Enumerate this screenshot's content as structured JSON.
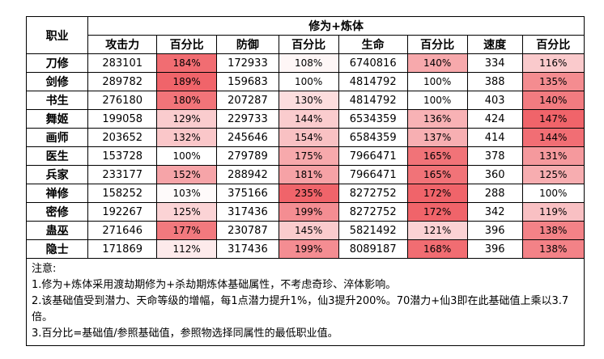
{
  "table": {
    "row_header": "职业",
    "group_header": "修为+炼体",
    "columns": [
      "攻击力",
      "百分比",
      "防御",
      "百分比",
      "生命",
      "百分比",
      "速度",
      "百分比"
    ],
    "rows": [
      {
        "role": "刀修",
        "atk": "283101",
        "atk_pct": "184%",
        "def": "172933",
        "def_pct": "108%",
        "hp": "6740816",
        "hp_pct": "140%",
        "spd": "334",
        "spd_pct": "116%"
      },
      {
        "role": "剑修",
        "atk": "289782",
        "atk_pct": "189%",
        "def": "159683",
        "def_pct": "100%",
        "hp": "4814792",
        "hp_pct": "100%",
        "spd": "388",
        "spd_pct": "135%"
      },
      {
        "role": "书生",
        "atk": "276180",
        "atk_pct": "180%",
        "def": "207287",
        "def_pct": "130%",
        "hp": "4814792",
        "hp_pct": "100%",
        "spd": "403",
        "spd_pct": "140%"
      },
      {
        "role": "舞姬",
        "atk": "199058",
        "atk_pct": "129%",
        "def": "229733",
        "def_pct": "144%",
        "hp": "6534359",
        "hp_pct": "136%",
        "spd": "424",
        "spd_pct": "147%"
      },
      {
        "role": "画师",
        "atk": "203652",
        "atk_pct": "132%",
        "def": "245646",
        "def_pct": "154%",
        "hp": "6584359",
        "hp_pct": "137%",
        "spd": "414",
        "spd_pct": "144%"
      },
      {
        "role": "医生",
        "atk": "153728",
        "atk_pct": "100%",
        "def": "279789",
        "def_pct": "175%",
        "hp": "7966471",
        "hp_pct": "165%",
        "spd": "378",
        "spd_pct": "131%"
      },
      {
        "role": "兵家",
        "atk": "233177",
        "atk_pct": "152%",
        "def": "288942",
        "def_pct": "181%",
        "hp": "7966471",
        "hp_pct": "165%",
        "spd": "360",
        "spd_pct": "125%"
      },
      {
        "role": "禅修",
        "atk": "158252",
        "atk_pct": "103%",
        "def": "375166",
        "def_pct": "235%",
        "hp": "8272752",
        "hp_pct": "172%",
        "spd": "288",
        "spd_pct": "100%"
      },
      {
        "role": "密修",
        "atk": "192267",
        "atk_pct": "125%",
        "def": "317436",
        "def_pct": "199%",
        "hp": "8272752",
        "hp_pct": "172%",
        "spd": "342",
        "spd_pct": "119%"
      },
      {
        "role": "蛊巫",
        "atk": "271646",
        "atk_pct": "177%",
        "def": "230787",
        "def_pct": "145%",
        "hp": "5821492",
        "hp_pct": "121%",
        "spd": "396",
        "spd_pct": "138%"
      },
      {
        "role": "隐士",
        "atk": "171869",
        "atk_pct": "112%",
        "def": "317436",
        "def_pct": "199%",
        "hp": "8089187",
        "hp_pct": "168%",
        "spd": "396",
        "spd_pct": "138%"
      }
    ]
  },
  "notes": [
    "注意:",
    "1.修为+炼体采用渡劫期修为+杀劫期炼体基础属性，不考虑奇珍、淬体影响。",
    "2.该基础值受到潜力、天命等级的增幅，每1点潜力提升1%，仙3提升200%。70潜力+仙3即在此基础值上乘以3.7倍。",
    "3.百分比=基础值/参照基础值，参照物选择同属性的最低职业值。"
  ],
  "colors": {
    "heat_min": "#ffffff",
    "heat_max": "#f0646a"
  }
}
